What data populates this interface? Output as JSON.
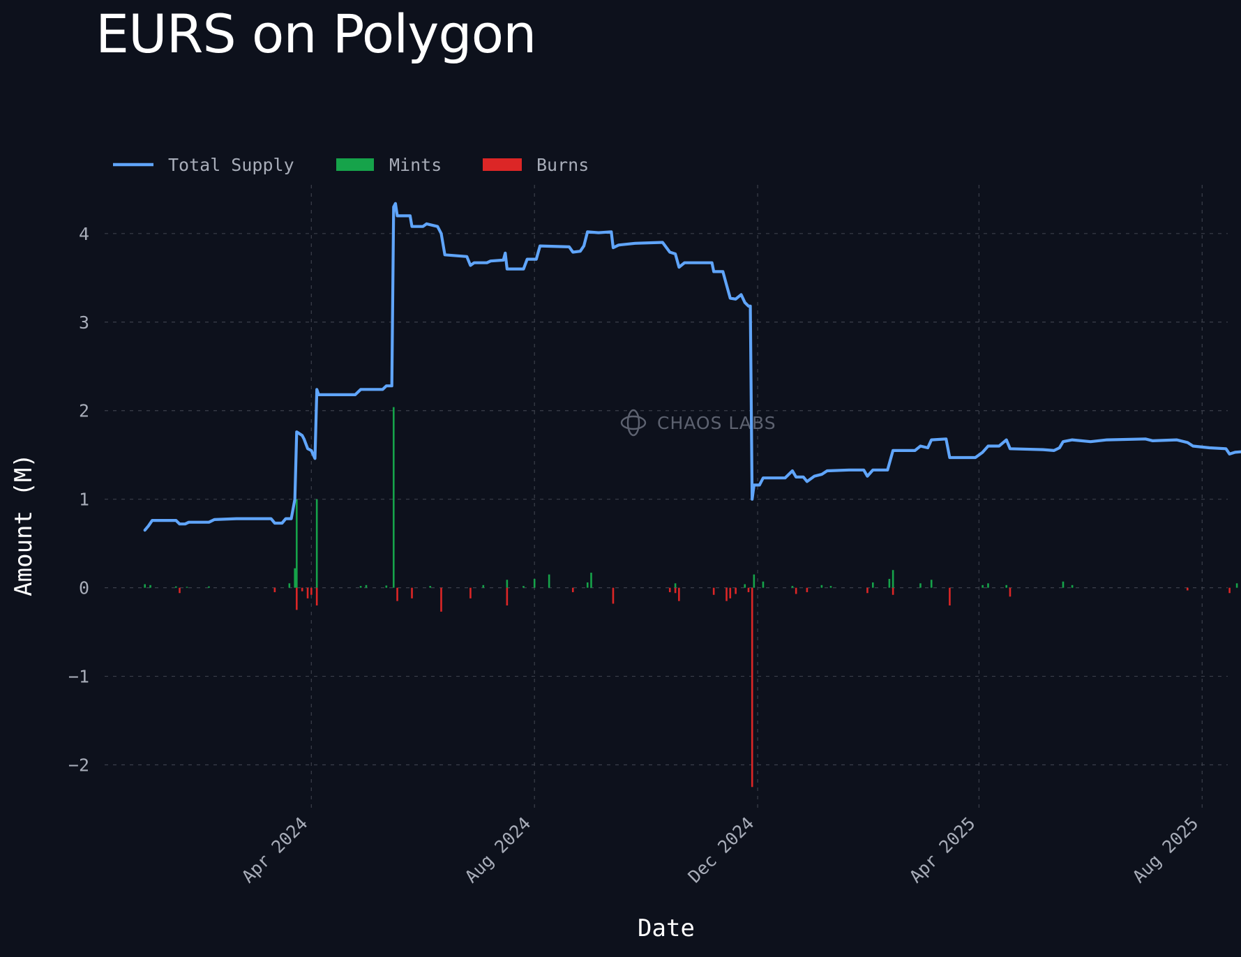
{
  "chart_data": {
    "type": "line",
    "title": "EURS on Polygon",
    "xlabel": "Date",
    "ylabel": "Amount (M)",
    "ylim": [
      -2.5,
      4.55
    ],
    "xlim": [
      "2023-12-10",
      "2025-08-15"
    ],
    "yticks": [
      -2,
      -1,
      0,
      1,
      2,
      3,
      4
    ],
    "ytick_labels": [
      "−2",
      "−1",
      "0",
      "1",
      "2",
      "3",
      "4"
    ],
    "xticks": [
      "2024-04-01",
      "2024-08-01",
      "2024-12-01",
      "2025-04-01",
      "2025-08-01"
    ],
    "xtick_labels": [
      "Apr 2024",
      "Aug 2024",
      "Dec 2024",
      "Apr 2025",
      "Aug 2025"
    ],
    "grid": true,
    "legend_position": "top-left",
    "colors": {
      "supply": "#60a5fa",
      "mints": "#16a34a",
      "burns": "#dc2626",
      "background": "#0d111c"
    },
    "watermark": "CHAOS LABS",
    "series": [
      {
        "name": "Total Supply",
        "kind": "line",
        "points": [
          [
            "2024-01-01",
            0.65
          ],
          [
            "2024-01-03",
            0.7
          ],
          [
            "2024-01-05",
            0.76
          ],
          [
            "2024-01-18",
            0.76
          ],
          [
            "2024-01-20",
            0.72
          ],
          [
            "2024-01-23",
            0.72
          ],
          [
            "2024-01-25",
            0.74
          ],
          [
            "2024-02-05",
            0.74
          ],
          [
            "2024-02-08",
            0.77
          ],
          [
            "2024-02-20",
            0.78
          ],
          [
            "2024-03-10",
            0.78
          ],
          [
            "2024-03-12",
            0.73
          ],
          [
            "2024-03-16",
            0.73
          ],
          [
            "2024-03-18",
            0.78
          ],
          [
            "2024-03-21",
            0.78
          ],
          [
            "2024-03-23",
            1.0
          ],
          [
            "2024-03-24",
            1.76
          ],
          [
            "2024-03-27",
            1.72
          ],
          [
            "2024-03-28",
            1.68
          ],
          [
            "2024-03-30",
            1.57
          ],
          [
            "2024-04-01",
            1.55
          ],
          [
            "2024-04-03",
            1.46
          ],
          [
            "2024-04-04",
            2.24
          ],
          [
            "2024-04-05",
            2.18
          ],
          [
            "2024-04-25",
            2.18
          ],
          [
            "2024-04-28",
            2.24
          ],
          [
            "2024-05-10",
            2.24
          ],
          [
            "2024-05-12",
            2.28
          ],
          [
            "2024-05-15",
            2.28
          ],
          [
            "2024-05-16",
            4.3
          ],
          [
            "2024-05-17",
            4.34
          ],
          [
            "2024-05-18",
            4.2
          ],
          [
            "2024-05-25",
            4.2
          ],
          [
            "2024-05-26",
            4.08
          ],
          [
            "2024-06-01",
            4.08
          ],
          [
            "2024-06-03",
            4.11
          ],
          [
            "2024-06-09",
            4.08
          ],
          [
            "2024-06-11",
            4.0
          ],
          [
            "2024-06-13",
            3.76
          ],
          [
            "2024-06-25",
            3.74
          ],
          [
            "2024-06-27",
            3.64
          ],
          [
            "2024-06-29",
            3.67
          ],
          [
            "2024-07-06",
            3.67
          ],
          [
            "2024-07-08",
            3.69
          ],
          [
            "2024-07-15",
            3.7
          ],
          [
            "2024-07-16",
            3.78
          ],
          [
            "2024-07-17",
            3.6
          ],
          [
            "2024-07-26",
            3.6
          ],
          [
            "2024-07-28",
            3.71
          ],
          [
            "2024-08-02",
            3.71
          ],
          [
            "2024-08-04",
            3.86
          ],
          [
            "2024-08-20",
            3.85
          ],
          [
            "2024-08-22",
            3.79
          ],
          [
            "2024-08-26",
            3.8
          ],
          [
            "2024-08-28",
            3.86
          ],
          [
            "2024-08-30",
            4.02
          ],
          [
            "2024-09-05",
            4.01
          ],
          [
            "2024-09-12",
            4.02
          ],
          [
            "2024-09-13",
            3.84
          ],
          [
            "2024-09-16",
            3.87
          ],
          [
            "2024-09-25",
            3.89
          ],
          [
            "2024-10-10",
            3.9
          ],
          [
            "2024-10-14",
            3.79
          ],
          [
            "2024-10-17",
            3.77
          ],
          [
            "2024-10-19",
            3.62
          ],
          [
            "2024-10-22",
            3.67
          ],
          [
            "2024-11-06",
            3.67
          ],
          [
            "2024-11-07",
            3.57
          ],
          [
            "2024-11-12",
            3.57
          ],
          [
            "2024-11-14",
            3.42
          ],
          [
            "2024-11-16",
            3.27
          ],
          [
            "2024-11-19",
            3.26
          ],
          [
            "2024-11-22",
            3.31
          ],
          [
            "2024-11-24",
            3.22
          ],
          [
            "2024-11-26",
            3.18
          ],
          [
            "2024-11-27",
            3.18
          ],
          [
            "2024-11-28",
            1.0
          ],
          [
            "2024-11-29",
            1.16
          ],
          [
            "2024-12-02",
            1.16
          ],
          [
            "2024-12-04",
            1.24
          ],
          [
            "2024-12-16",
            1.24
          ],
          [
            "2024-12-20",
            1.32
          ],
          [
            "2024-12-22",
            1.25
          ],
          [
            "2024-12-26",
            1.25
          ],
          [
            "2024-12-28",
            1.2
          ],
          [
            "2025-01-01",
            1.26
          ],
          [
            "2025-01-05",
            1.28
          ],
          [
            "2025-01-08",
            1.32
          ],
          [
            "2025-01-20",
            1.33
          ],
          [
            "2025-01-28",
            1.33
          ],
          [
            "2025-01-30",
            1.26
          ],
          [
            "2025-02-02",
            1.33
          ],
          [
            "2025-02-10",
            1.33
          ],
          [
            "2025-02-13",
            1.55
          ],
          [
            "2025-02-25",
            1.55
          ],
          [
            "2025-02-28",
            1.6
          ],
          [
            "2025-03-04",
            1.58
          ],
          [
            "2025-03-06",
            1.67
          ],
          [
            "2025-03-14",
            1.68
          ],
          [
            "2025-03-16",
            1.47
          ],
          [
            "2025-03-30",
            1.47
          ],
          [
            "2025-04-03",
            1.53
          ],
          [
            "2025-04-06",
            1.6
          ],
          [
            "2025-04-12",
            1.6
          ],
          [
            "2025-04-16",
            1.67
          ],
          [
            "2025-04-18",
            1.57
          ],
          [
            "2025-05-06",
            1.56
          ],
          [
            "2025-05-12",
            1.55
          ],
          [
            "2025-05-15",
            1.58
          ],
          [
            "2025-05-17",
            1.65
          ],
          [
            "2025-05-22",
            1.67
          ],
          [
            "2025-06-01",
            1.65
          ],
          [
            "2025-06-10",
            1.67
          ],
          [
            "2025-07-01",
            1.68
          ],
          [
            "2025-07-05",
            1.66
          ],
          [
            "2025-07-18",
            1.67
          ],
          [
            "2025-07-24",
            1.64
          ],
          [
            "2025-07-27",
            1.6
          ],
          [
            "2025-08-05",
            1.58
          ],
          [
            "2025-08-14",
            1.57
          ],
          [
            "2025-08-16",
            1.51
          ],
          [
            "2025-08-19",
            1.53
          ],
          [
            "2025-08-25",
            1.54
          ]
        ]
      },
      {
        "name": "Mints",
        "kind": "bar",
        "points": [
          [
            "2024-01-01",
            0.04
          ],
          [
            "2024-01-04",
            0.03
          ],
          [
            "2024-01-18",
            0.015
          ],
          [
            "2024-01-24",
            0.01
          ],
          [
            "2024-02-05",
            0.015
          ],
          [
            "2024-03-20",
            0.05
          ],
          [
            "2024-03-23",
            0.22
          ],
          [
            "2024-03-24",
            1.0
          ],
          [
            "2024-04-04",
            1.0
          ],
          [
            "2024-04-28",
            0.02
          ],
          [
            "2024-05-01",
            0.03
          ],
          [
            "2024-05-12",
            0.025
          ],
          [
            "2024-05-16",
            2.04
          ],
          [
            "2024-06-05",
            0.02
          ],
          [
            "2024-07-04",
            0.03
          ],
          [
            "2024-07-17",
            0.09
          ],
          [
            "2024-07-26",
            0.02
          ],
          [
            "2024-08-01",
            0.1
          ],
          [
            "2024-08-09",
            0.15
          ],
          [
            "2024-08-30",
            0.06
          ],
          [
            "2024-09-01",
            0.17
          ],
          [
            "2024-10-17",
            0.05
          ],
          [
            "2024-11-24",
            0.04
          ],
          [
            "2024-11-29",
            0.15
          ],
          [
            "2024-12-04",
            0.07
          ],
          [
            "2024-12-20",
            0.02
          ],
          [
            "2025-01-05",
            0.03
          ],
          [
            "2025-01-10",
            0.02
          ],
          [
            "2025-02-02",
            0.06
          ],
          [
            "2025-02-11",
            0.1
          ],
          [
            "2025-02-13",
            0.2
          ],
          [
            "2025-02-28",
            0.05
          ],
          [
            "2025-03-06",
            0.09
          ],
          [
            "2025-04-03",
            0.03
          ],
          [
            "2025-04-06",
            0.05
          ],
          [
            "2025-04-16",
            0.03
          ],
          [
            "2025-05-17",
            0.07
          ],
          [
            "2025-05-22",
            0.03
          ],
          [
            "2025-08-20",
            0.05
          ]
        ]
      },
      {
        "name": "Burns",
        "kind": "bar",
        "points": [
          [
            "2024-01-20",
            -0.06
          ],
          [
            "2024-03-12",
            -0.05
          ],
          [
            "2024-03-24",
            -0.25
          ],
          [
            "2024-03-27",
            -0.04
          ],
          [
            "2024-03-30",
            -0.12
          ],
          [
            "2024-04-01",
            -0.08
          ],
          [
            "2024-04-04",
            -0.2
          ],
          [
            "2024-05-18",
            -0.15
          ],
          [
            "2024-05-26",
            -0.12
          ],
          [
            "2024-06-11",
            -0.27
          ],
          [
            "2024-06-27",
            -0.12
          ],
          [
            "2024-07-17",
            -0.2
          ],
          [
            "2024-08-22",
            -0.05
          ],
          [
            "2024-09-13",
            -0.18
          ],
          [
            "2024-10-14",
            -0.05
          ],
          [
            "2024-10-17",
            -0.06
          ],
          [
            "2024-10-19",
            -0.15
          ],
          [
            "2024-11-07",
            -0.08
          ],
          [
            "2024-11-14",
            -0.15
          ],
          [
            "2024-11-16",
            -0.12
          ],
          [
            "2024-11-19",
            -0.07
          ],
          [
            "2024-11-26",
            -0.05
          ],
          [
            "2024-11-28",
            -2.25
          ],
          [
            "2024-12-22",
            -0.07
          ],
          [
            "2024-12-28",
            -0.05
          ],
          [
            "2025-01-30",
            -0.06
          ],
          [
            "2025-02-13",
            -0.08
          ],
          [
            "2025-03-16",
            -0.2
          ],
          [
            "2025-04-18",
            -0.1
          ],
          [
            "2025-07-24",
            -0.03
          ],
          [
            "2025-08-16",
            -0.06
          ]
        ]
      }
    ]
  }
}
